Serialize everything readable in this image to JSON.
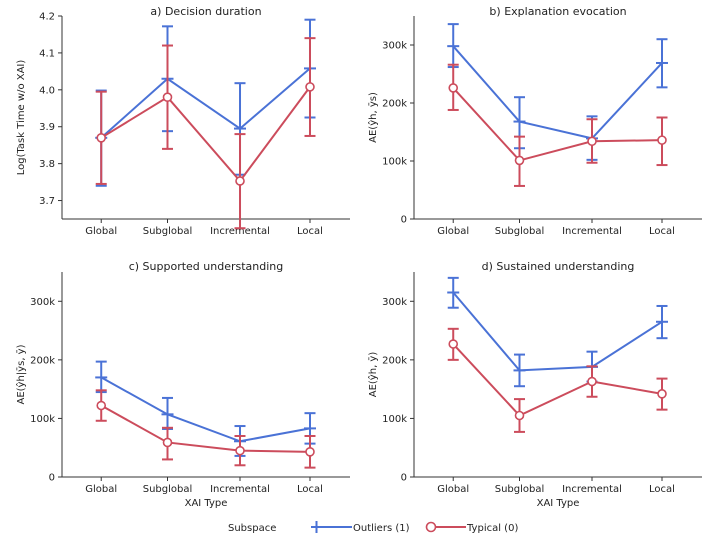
{
  "chart_data": [
    {
      "type": "line",
      "title": "a) Decision duration",
      "ylabel": "Log(Task Time w/o XAI)",
      "xlabel": "",
      "categories": [
        "Global",
        "Subglobal",
        "Incremental",
        "Local"
      ],
      "ylim": [
        3.65,
        4.2
      ],
      "yticks": [
        3.7,
        3.8,
        3.9,
        4.0,
        4.1,
        4.2
      ],
      "ytick_labels": [
        "3.7",
        "3.8",
        "3.9",
        "4.0",
        "4.1",
        "4.2"
      ],
      "series": [
        {
          "name": "Outliers (1)",
          "color": "#4a72d6",
          "values": [
            3.87,
            4.03,
            3.895,
            4.058
          ],
          "err_low": [
            3.74,
            3.888,
            3.77,
            3.925
          ],
          "err_high": [
            3.998,
            4.172,
            4.018,
            4.19
          ]
        },
        {
          "name": "Typical (0)",
          "color": "#cc4c5c",
          "values": [
            3.87,
            3.98,
            3.753,
            4.008
          ],
          "err_low": [
            3.745,
            3.84,
            3.625,
            3.875
          ],
          "err_high": [
            3.995,
            4.12,
            3.88,
            4.14
          ]
        }
      ]
    },
    {
      "type": "line",
      "title": "b) Explanation evocation",
      "ylabel": "AE(ŷh, ȳs)",
      "xlabel": "",
      "categories": [
        "Global",
        "Subglobal",
        "Incremental",
        "Local"
      ],
      "ylim": [
        0,
        350000
      ],
      "yticks": [
        0,
        100000,
        200000,
        300000
      ],
      "ytick_labels": [
        "0",
        "100k",
        "200k",
        "300k"
      ],
      "series": [
        {
          "name": "Outliers (1)",
          "color": "#4a72d6",
          "values": [
            298000,
            168000,
            139000,
            269000
          ],
          "err_low": [
            262000,
            122000,
            102000,
            227000
          ],
          "err_high": [
            336000,
            210000,
            177000,
            310000
          ]
        },
        {
          "name": "Typical (0)",
          "color": "#cc4c5c",
          "values": [
            226000,
            101000,
            134000,
            136000
          ],
          "err_low": [
            188000,
            57000,
            97000,
            93000
          ],
          "err_high": [
            266000,
            142000,
            172000,
            175000
          ]
        }
      ]
    },
    {
      "type": "line",
      "title": "c) Supported understanding",
      "ylabel": "AE(ŷh|ȳs, ȳ)",
      "xlabel": "XAI Type",
      "categories": [
        "Global",
        "Subglobal",
        "Incremental",
        "Local"
      ],
      "ylim": [
        0,
        350000
      ],
      "yticks": [
        0,
        100000,
        200000,
        300000
      ],
      "ytick_labels": [
        "0",
        "100k",
        "200k",
        "300k"
      ],
      "series": [
        {
          "name": "Outliers (1)",
          "color": "#4a72d6",
          "values": [
            170000,
            107000,
            61000,
            83000
          ],
          "err_low": [
            145000,
            82000,
            36000,
            57000
          ],
          "err_high": [
            197000,
            135000,
            87000,
            109000
          ]
        },
        {
          "name": "Typical (0)",
          "color": "#cc4c5c",
          "values": [
            122000,
            59000,
            45000,
            43000
          ],
          "err_low": [
            96000,
            30000,
            20000,
            16000
          ],
          "err_high": [
            148000,
            84000,
            70000,
            70000
          ]
        }
      ]
    },
    {
      "type": "line",
      "title": "d) Sustained understanding",
      "ylabel": "AE(ŷh, ȳ)",
      "xlabel": "XAI Type",
      "categories": [
        "Global",
        "Subglobal",
        "Incremental",
        "Local"
      ],
      "ylim": [
        0,
        350000
      ],
      "yticks": [
        0,
        100000,
        200000,
        300000
      ],
      "ytick_labels": [
        "0",
        "100k",
        "200k",
        "300k"
      ],
      "series": [
        {
          "name": "Outliers (1)",
          "color": "#4a72d6",
          "values": [
            315000,
            182000,
            188000,
            265000
          ],
          "err_low": [
            289000,
            155000,
            163000,
            237000
          ],
          "err_high": [
            340000,
            209000,
            214000,
            292000
          ]
        },
        {
          "name": "Typical (0)",
          "color": "#cc4c5c",
          "values": [
            227000,
            105000,
            163000,
            142000
          ],
          "err_low": [
            200000,
            77000,
            137000,
            115000
          ],
          "err_high": [
            253000,
            133000,
            189000,
            168000
          ]
        }
      ]
    }
  ],
  "legend": {
    "title": "Subspace",
    "items": [
      {
        "label": "Outliers (1)",
        "marker": "plus",
        "color": "#4a72d6"
      },
      {
        "label": "Typical (0)",
        "marker": "circle",
        "color": "#cc4c5c"
      }
    ]
  }
}
